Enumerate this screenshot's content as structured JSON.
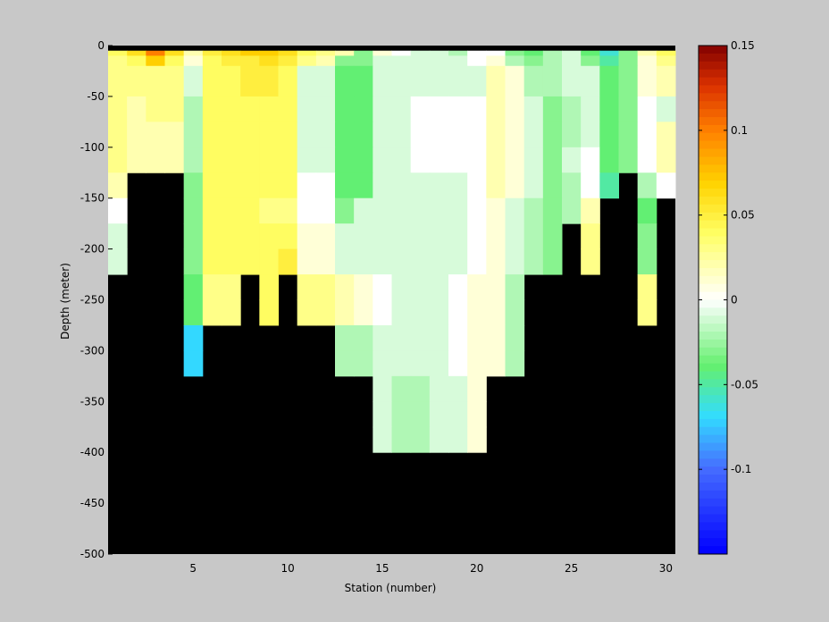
{
  "chart_data": {
    "type": "heatmap",
    "title": "",
    "xlabel": "Station (number)",
    "ylabel": "Depth (meter)",
    "xlim": [
      1,
      31
    ],
    "ylim": [
      -500,
      0
    ],
    "x_ticks": [
      5,
      10,
      15,
      20,
      25,
      30
    ],
    "y_ticks": [
      0,
      -50,
      -100,
      -150,
      -200,
      -250,
      -300,
      -350,
      -400,
      -450,
      -500
    ],
    "stations": [
      1,
      2,
      3,
      4,
      5,
      6,
      7,
      8,
      9,
      10,
      11,
      12,
      13,
      14,
      15,
      16,
      17,
      18,
      19,
      20,
      21,
      22,
      23,
      24,
      25,
      26,
      27,
      28,
      29,
      30
    ],
    "depth_bins": [
      [
        -10,
        -5
      ],
      [
        -20,
        -10
      ],
      [
        -50,
        -20
      ],
      [
        -75,
        -50
      ],
      [
        -100,
        -75
      ],
      [
        -125,
        -100
      ],
      [
        -150,
        -125
      ],
      [
        -175,
        -150
      ],
      [
        -200,
        -175
      ],
      [
        -225,
        -200
      ],
      [
        -250,
        -225
      ],
      [
        -275,
        -250
      ],
      [
        -300,
        -275
      ],
      [
        -325,
        -300
      ],
      [
        -350,
        -325
      ],
      [
        -375,
        -350
      ],
      [
        -400,
        -375
      ]
    ],
    "values": [
      [
        0.04,
        0.06,
        0.1,
        0.06,
        0.02,
        0.05,
        0.06,
        0.07,
        0.07,
        0.06,
        0.04,
        0.03,
        0.02,
        -0.03,
        0.01,
        0.0,
        -0.01,
        -0.01,
        -0.02,
        0.0,
        0.0,
        -0.03,
        -0.04,
        -0.02,
        -0.01,
        -0.04,
        -0.06,
        -0.03,
        0.02,
        0.04
      ],
      [
        0.03,
        0.04,
        0.07,
        0.04,
        0.01,
        0.04,
        0.05,
        0.05,
        0.06,
        0.05,
        0.03,
        0.02,
        -0.03,
        -0.03,
        -0.01,
        -0.01,
        -0.01,
        -0.01,
        -0.01,
        0.0,
        0.01,
        -0.02,
        -0.03,
        -0.02,
        -0.01,
        -0.03,
        -0.05,
        -0.03,
        0.01,
        0.03
      ],
      [
        0.03,
        0.03,
        0.03,
        0.03,
        -0.01,
        0.04,
        0.04,
        0.05,
        0.05,
        0.04,
        -0.01,
        -0.01,
        -0.04,
        -0.04,
        -0.01,
        -0.01,
        -0.01,
        -0.01,
        -0.01,
        -0.01,
        0.02,
        0.01,
        -0.02,
        -0.02,
        -0.01,
        -0.01,
        -0.04,
        -0.03,
        0.01,
        0.02
      ],
      [
        0.03,
        0.02,
        0.03,
        0.03,
        -0.02,
        0.04,
        0.04,
        0.04,
        0.04,
        0.04,
        -0.01,
        -0.01,
        -0.04,
        -0.04,
        -0.01,
        -0.01,
        0.0,
        0.0,
        0.0,
        0.0,
        0.02,
        0.01,
        -0.01,
        -0.03,
        -0.02,
        -0.01,
        -0.04,
        -0.03,
        0.0,
        -0.01
      ],
      [
        0.03,
        0.02,
        0.02,
        0.02,
        -0.02,
        0.04,
        0.04,
        0.04,
        0.04,
        0.04,
        -0.01,
        -0.01,
        -0.04,
        -0.04,
        -0.01,
        -0.01,
        0.0,
        0.0,
        0.0,
        0.0,
        0.02,
        0.01,
        -0.01,
        -0.03,
        -0.02,
        -0.01,
        -0.04,
        -0.03,
        0.0,
        0.02
      ],
      [
        0.03,
        0.02,
        0.02,
        0.02,
        -0.02,
        0.04,
        0.04,
        0.04,
        0.04,
        0.04,
        -0.01,
        -0.01,
        -0.04,
        -0.04,
        -0.01,
        -0.01,
        0.0,
        0.0,
        0.0,
        0.0,
        0.02,
        0.01,
        -0.01,
        -0.03,
        -0.01,
        0.0,
        -0.04,
        -0.03,
        0.0,
        0.02
      ],
      [
        0.02,
        null,
        null,
        null,
        -0.03,
        0.04,
        0.04,
        0.04,
        0.04,
        0.04,
        0.0,
        0.0,
        -0.04,
        -0.04,
        -0.01,
        -0.01,
        -0.01,
        -0.01,
        -0.01,
        0.0,
        0.02,
        0.01,
        -0.01,
        -0.03,
        -0.02,
        0.0,
        -0.05,
        null,
        -0.02,
        0.0
      ],
      [
        0.0,
        null,
        null,
        null,
        -0.03,
        0.04,
        0.04,
        0.04,
        0.03,
        0.03,
        0.0,
        0.0,
        -0.03,
        -0.01,
        -0.01,
        -0.01,
        -0.01,
        -0.01,
        -0.01,
        0.0,
        0.01,
        -0.01,
        -0.02,
        -0.03,
        -0.02,
        0.02,
        null,
        null,
        -0.04,
        null
      ],
      [
        -0.01,
        null,
        null,
        null,
        -0.03,
        0.04,
        0.04,
        0.04,
        0.04,
        0.04,
        0.01,
        0.01,
        -0.01,
        -0.01,
        -0.01,
        -0.01,
        -0.01,
        -0.01,
        -0.01,
        0.0,
        0.01,
        -0.01,
        -0.02,
        -0.03,
        null,
        0.03,
        null,
        null,
        -0.03,
        null
      ],
      [
        -0.01,
        null,
        null,
        null,
        -0.03,
        0.04,
        0.04,
        0.04,
        0.04,
        0.05,
        0.01,
        0.01,
        -0.01,
        -0.01,
        -0.01,
        -0.01,
        -0.01,
        -0.01,
        -0.01,
        0.0,
        0.01,
        -0.01,
        -0.02,
        -0.03,
        null,
        0.03,
        null,
        null,
        -0.03,
        null
      ],
      [
        null,
        null,
        null,
        null,
        -0.04,
        0.03,
        0.03,
        null,
        0.04,
        null,
        0.03,
        0.03,
        0.02,
        0.01,
        0.0,
        -0.01,
        -0.01,
        -0.01,
        0.0,
        0.01,
        0.01,
        -0.02,
        null,
        null,
        null,
        null,
        null,
        null,
        0.03,
        null
      ],
      [
        null,
        null,
        null,
        null,
        -0.04,
        0.03,
        0.03,
        null,
        0.04,
        null,
        0.03,
        0.03,
        0.02,
        0.01,
        0.0,
        -0.01,
        -0.01,
        -0.01,
        0.0,
        0.01,
        0.01,
        -0.02,
        null,
        null,
        null,
        null,
        null,
        null,
        0.03,
        null
      ],
      [
        null,
        null,
        null,
        null,
        -0.07,
        null,
        null,
        null,
        null,
        null,
        null,
        null,
        -0.02,
        -0.02,
        -0.01,
        -0.01,
        -0.01,
        -0.01,
        0.0,
        0.01,
        0.01,
        -0.02,
        null,
        null,
        null,
        null,
        null,
        null,
        null,
        null
      ],
      [
        null,
        null,
        null,
        null,
        -0.07,
        null,
        null,
        null,
        null,
        null,
        null,
        null,
        -0.02,
        -0.02,
        -0.01,
        -0.01,
        -0.01,
        -0.01,
        0.0,
        0.01,
        0.01,
        -0.02,
        null,
        null,
        null,
        null,
        null,
        null,
        null,
        null
      ],
      [
        null,
        null,
        null,
        null,
        null,
        null,
        null,
        null,
        null,
        null,
        null,
        null,
        null,
        null,
        -0.01,
        -0.02,
        -0.02,
        -0.01,
        -0.01,
        0.01,
        null,
        null,
        null,
        null,
        null,
        null,
        null,
        null,
        null,
        null
      ],
      [
        null,
        null,
        null,
        null,
        null,
        null,
        null,
        null,
        null,
        null,
        null,
        null,
        null,
        null,
        -0.01,
        -0.02,
        -0.02,
        -0.01,
        -0.01,
        0.01,
        null,
        null,
        null,
        null,
        null,
        null,
        null,
        null,
        null,
        null
      ],
      [
        null,
        null,
        null,
        null,
        null,
        null,
        null,
        null,
        null,
        null,
        null,
        null,
        null,
        null,
        -0.01,
        -0.02,
        -0.02,
        -0.01,
        -0.01,
        0.01,
        null,
        null,
        null,
        null,
        null,
        null,
        null,
        null,
        null,
        null
      ]
    ],
    "surface_band_depth": [
      -5,
      0
    ],
    "mask_color": "#000000",
    "colorbar": {
      "colormap": "jet-white-center",
      "range": [
        -0.15,
        0.15
      ],
      "ticks": [
        0.15,
        0.1,
        0.05,
        0,
        -0.05,
        -0.1
      ],
      "tick_labels": [
        "0.15",
        "0.1",
        "0.05",
        "0",
        "-0.05",
        "-0.1"
      ],
      "steps": 64
    },
    "grid": false,
    "legend": "none"
  }
}
